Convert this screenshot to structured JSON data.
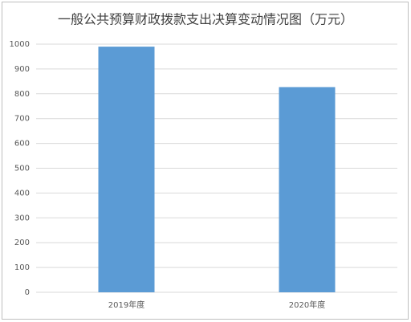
{
  "chart_data": {
    "type": "bar",
    "title": "一般公共预算财政拨款支出决算变动情况图（万元）",
    "categories": [
      "2019年度",
      "2020年度"
    ],
    "values": [
      990,
      827
    ],
    "color": "#5b9bd5",
    "ylim": [
      0,
      1000
    ],
    "yticks": [
      0,
      100,
      200,
      300,
      400,
      500,
      600,
      700,
      800,
      900,
      1000
    ],
    "grid": true
  }
}
